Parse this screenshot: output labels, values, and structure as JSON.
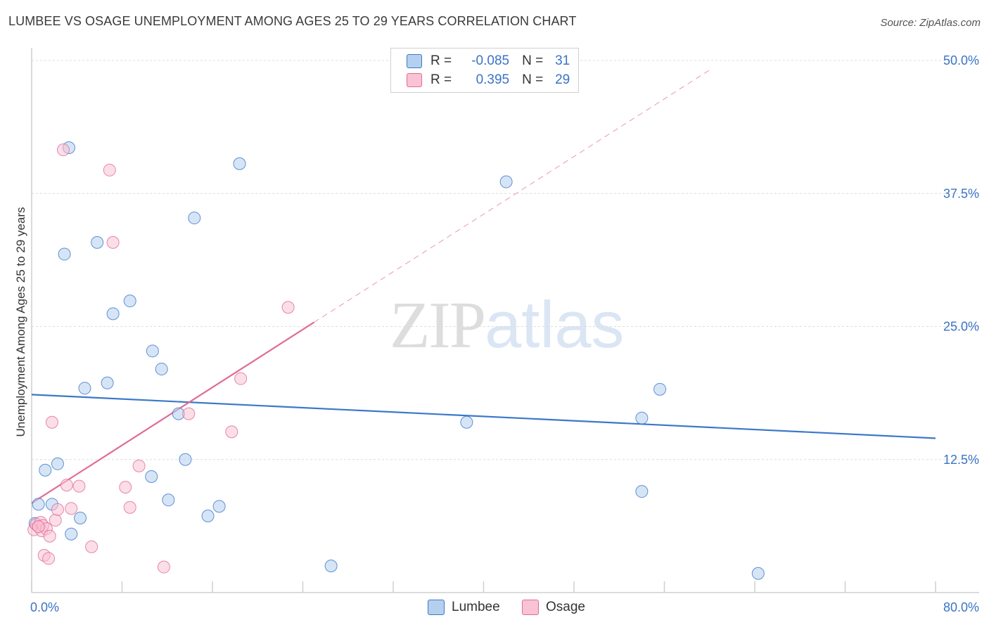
{
  "title": "LUMBEE VS OSAGE UNEMPLOYMENT AMONG AGES 25 TO 29 YEARS CORRELATION CHART",
  "source": "Source: ZipAtlas.com",
  "watermark": {
    "zip": "ZIP",
    "atlas": "atlas"
  },
  "legend": {
    "r_label": "R =",
    "n_label": "N =",
    "lumbee": {
      "r": "-0.085",
      "n": "31"
    },
    "osage": {
      "r": "0.395",
      "n": "29"
    }
  },
  "chart_data": {
    "type": "scatter",
    "title": "LUMBEE VS OSAGE UNEMPLOYMENT AMONG AGES 25 TO 29 YEARS CORRELATION CHART",
    "xlabel": "",
    "ylabel": "Unemployment Among Ages 25 to 29 years",
    "xlim": [
      0,
      80
    ],
    "ylim": [
      0,
      50
    ],
    "x_tick_labels": [
      "0.0%",
      "80.0%"
    ],
    "y_ticks": [
      12.5,
      25.0,
      37.5,
      50.0
    ],
    "y_tick_labels": [
      "12.5%",
      "25.0%",
      "37.5%",
      "50.0%"
    ],
    "grid": true,
    "legend_position": "bottom",
    "series": [
      {
        "name": "Lumbee",
        "color": "#3b78c9",
        "fill": "#b5d0ee",
        "points": [
          [
            0.3,
            6.5
          ],
          [
            0.6,
            8.3
          ],
          [
            1.2,
            11.5
          ],
          [
            1.8,
            8.3
          ],
          [
            2.3,
            12.1
          ],
          [
            2.9,
            31.8
          ],
          [
            3.3,
            41.8
          ],
          [
            3.5,
            5.5
          ],
          [
            4.3,
            7.0
          ],
          [
            4.7,
            19.2
          ],
          [
            5.8,
            32.9
          ],
          [
            6.7,
            19.7
          ],
          [
            7.2,
            26.2
          ],
          [
            8.7,
            27.4
          ],
          [
            10.6,
            10.9
          ],
          [
            10.7,
            22.7
          ],
          [
            11.5,
            21.0
          ],
          [
            12.1,
            8.7
          ],
          [
            13.0,
            16.8
          ],
          [
            13.6,
            12.5
          ],
          [
            14.4,
            35.2
          ],
          [
            15.6,
            7.2
          ],
          [
            16.6,
            8.1
          ],
          [
            18.4,
            40.3
          ],
          [
            26.5,
            2.5
          ],
          [
            38.5,
            16.0
          ],
          [
            42.0,
            38.6
          ],
          [
            54.0,
            9.5
          ],
          [
            54.0,
            16.4
          ],
          [
            55.6,
            19.1
          ],
          [
            64.3,
            1.8
          ]
        ],
        "trend": [
          [
            0,
            18.6
          ],
          [
            80,
            14.5
          ]
        ]
      },
      {
        "name": "Osage",
        "color": "#e06b98",
        "fill": "#f9c3d4",
        "points": [
          [
            0.2,
            5.9
          ],
          [
            0.4,
            6.4
          ],
          [
            0.6,
            6.2
          ],
          [
            0.8,
            6.6
          ],
          [
            0.9,
            5.8
          ],
          [
            1.0,
            6.3
          ],
          [
            1.1,
            3.5
          ],
          [
            1.3,
            6.0
          ],
          [
            1.5,
            3.2
          ],
          [
            1.6,
            5.3
          ],
          [
            1.8,
            16.0
          ],
          [
            2.1,
            6.8
          ],
          [
            2.3,
            7.8
          ],
          [
            2.8,
            41.6
          ],
          [
            3.1,
            10.1
          ],
          [
            3.5,
            7.9
          ],
          [
            4.2,
            10.0
          ],
          [
            5.3,
            4.3
          ],
          [
            6.9,
            39.7
          ],
          [
            7.2,
            32.9
          ],
          [
            8.3,
            9.9
          ],
          [
            8.7,
            8.0
          ],
          [
            9.5,
            11.9
          ],
          [
            11.7,
            2.4
          ],
          [
            13.9,
            16.8
          ],
          [
            17.7,
            15.1
          ],
          [
            18.5,
            20.1
          ],
          [
            22.7,
            26.8
          ],
          [
            0.6,
            6.2
          ]
        ],
        "trend": [
          [
            0,
            8.4
          ],
          [
            25,
            25.4
          ]
        ],
        "trend_dashed": [
          [
            25,
            25.4
          ],
          [
            60,
            49.1
          ]
        ]
      }
    ]
  }
}
